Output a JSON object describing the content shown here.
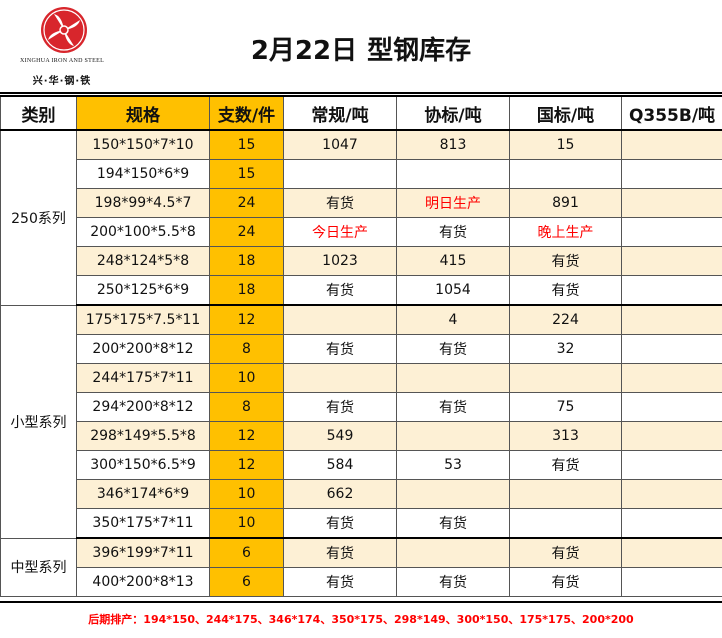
{
  "header": {
    "company_en": "XINGHUA IRON AND STEEL",
    "company_cn": "兴·华·钢·铁",
    "title_date": "2月22日",
    "title_text": "型钢库存"
  },
  "columns": [
    "类别",
    "规格",
    "支数/件",
    "常规/吨",
    "协标/吨",
    "国标/吨",
    "Q355B/吨"
  ],
  "groups": [
    {
      "category": "250系列",
      "rows": [
        {
          "spec": "150*150*7*10",
          "count": "15",
          "regular": "1047",
          "assoc": "813",
          "national": "15",
          "q355b": ""
        },
        {
          "spec": "194*150*6*9",
          "count": "15",
          "regular": "",
          "assoc": "",
          "national": "",
          "q355b": ""
        },
        {
          "spec": "198*99*4.5*7",
          "count": "24",
          "regular": "有货",
          "assoc": "明日生产",
          "national": "891",
          "q355b": ""
        },
        {
          "spec": "200*100*5.5*8",
          "count": "24",
          "regular": "今日生产",
          "assoc": "有货",
          "national": "晚上生产",
          "q355b": ""
        },
        {
          "spec": "248*124*5*8",
          "count": "18",
          "regular": "1023",
          "assoc": "415",
          "national": "有货",
          "q355b": ""
        },
        {
          "spec": "250*125*6*9",
          "count": "18",
          "regular": "有货",
          "assoc": "1054",
          "national": "有货",
          "q355b": ""
        }
      ]
    },
    {
      "category": "小型系列",
      "rows": [
        {
          "spec": "175*175*7.5*11",
          "count": "12",
          "regular": "",
          "assoc": "4",
          "national": "224",
          "q355b": ""
        },
        {
          "spec": "200*200*8*12",
          "count": "8",
          "regular": "有货",
          "assoc": "有货",
          "national": "32",
          "q355b": ""
        },
        {
          "spec": "244*175*7*11",
          "count": "10",
          "regular": "",
          "assoc": "",
          "national": "",
          "q355b": ""
        },
        {
          "spec": "294*200*8*12",
          "count": "8",
          "regular": "有货",
          "assoc": "有货",
          "national": "75",
          "q355b": ""
        },
        {
          "spec": "298*149*5.5*8",
          "count": "12",
          "regular": "549",
          "assoc": "",
          "national": "313",
          "q355b": ""
        },
        {
          "spec": "300*150*6.5*9",
          "count": "12",
          "regular": "584",
          "assoc": "53",
          "national": "有货",
          "q355b": ""
        },
        {
          "spec": "346*174*6*9",
          "count": "10",
          "regular": "662",
          "assoc": "",
          "national": "",
          "q355b": ""
        },
        {
          "spec": "350*175*7*11",
          "count": "10",
          "regular": "有货",
          "assoc": "有货",
          "national": "",
          "q355b": ""
        }
      ]
    },
    {
      "category": "中型系列",
      "rows": [
        {
          "spec": "396*199*7*11",
          "count": "6",
          "regular": "有货",
          "assoc": "",
          "national": "有货",
          "q355b": ""
        },
        {
          "spec": "400*200*8*13",
          "count": "6",
          "regular": "有货",
          "assoc": "有货",
          "national": "有货",
          "q355b": ""
        }
      ]
    }
  ],
  "red_values": [
    "明日生产",
    "今日生产",
    "晚上生产"
  ],
  "footer": {
    "schedule": "后期排产：194*150、244*175、346*174、350*175、298*149、300*150、175*175、200*200"
  },
  "colors": {
    "accent_orange": "#ffc000",
    "light_row": "#fdf0d5",
    "alert_red": "#ff0000",
    "logo_red": "#d8262c"
  }
}
